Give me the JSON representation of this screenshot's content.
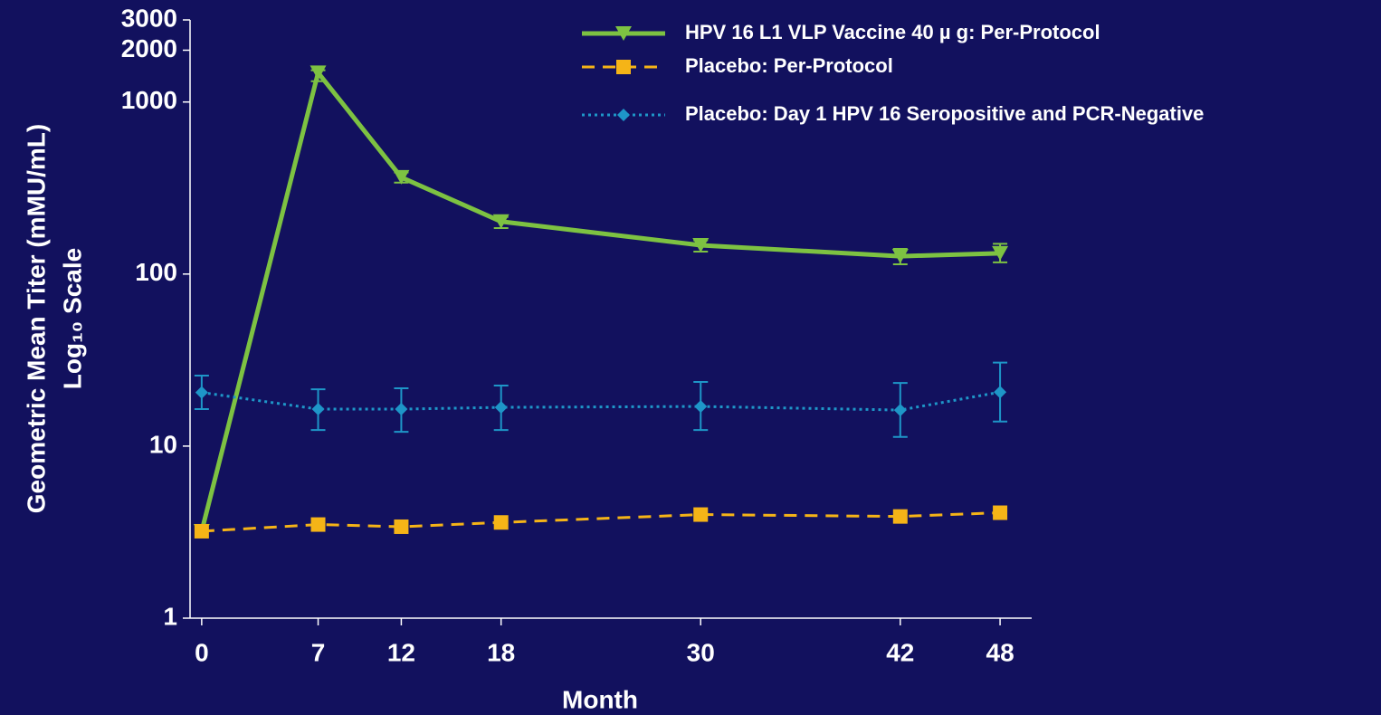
{
  "chart_data": {
    "type": "line",
    "y_label": [
      "Geometric Mean Titer (mMU/mL)",
      "Log₁₀ Scale"
    ],
    "x_label": "Month",
    "x": [
      0,
      7,
      12,
      18,
      30,
      42,
      48
    ],
    "xlim": [
      -0.7,
      49.9
    ],
    "xticks": [
      0,
      7,
      12,
      18,
      30,
      42,
      48
    ],
    "ylim": [
      1,
      3000
    ],
    "yticks": [
      1,
      10,
      100,
      1000,
      2000,
      3000
    ],
    "log_y": true,
    "legend": "top-right",
    "series": [
      {
        "name": "HPV 16 L1 VLP Vaccine 40 µ g: Per-Protocol",
        "color": "#7dc242",
        "line": "solid",
        "marker": "triangle-down",
        "values": [
          3.2,
          1480,
          365,
          202,
          147,
          127,
          132
        ],
        "error_low": [
          null,
          1320,
          340,
          185,
          135,
          114,
          117
        ],
        "error_high": [
          null,
          1530,
          390,
          215,
          157,
          140,
          150
        ]
      },
      {
        "name": "Placebo: Per-Protocol",
        "color": "#f5b417",
        "line": "dashed",
        "marker": "square",
        "values": [
          3.2,
          3.5,
          3.4,
          3.6,
          4.0,
          3.9,
          4.1
        ]
      },
      {
        "name": "Placebo: Day 1 HPV 16 Seropositive and PCR-Negative",
        "color": "#1e96c8",
        "line": "dotted",
        "marker": "diamond",
        "values": [
          20.5,
          16.4,
          16.4,
          16.8,
          17,
          16.2,
          20.6
        ],
        "error_low": [
          16.4,
          12.4,
          12.1,
          12.4,
          12.4,
          11.3,
          13.9
        ],
        "error_high": [
          25.7,
          21.4,
          21.7,
          22.5,
          23.6,
          23.3,
          30.6
        ]
      }
    ]
  }
}
